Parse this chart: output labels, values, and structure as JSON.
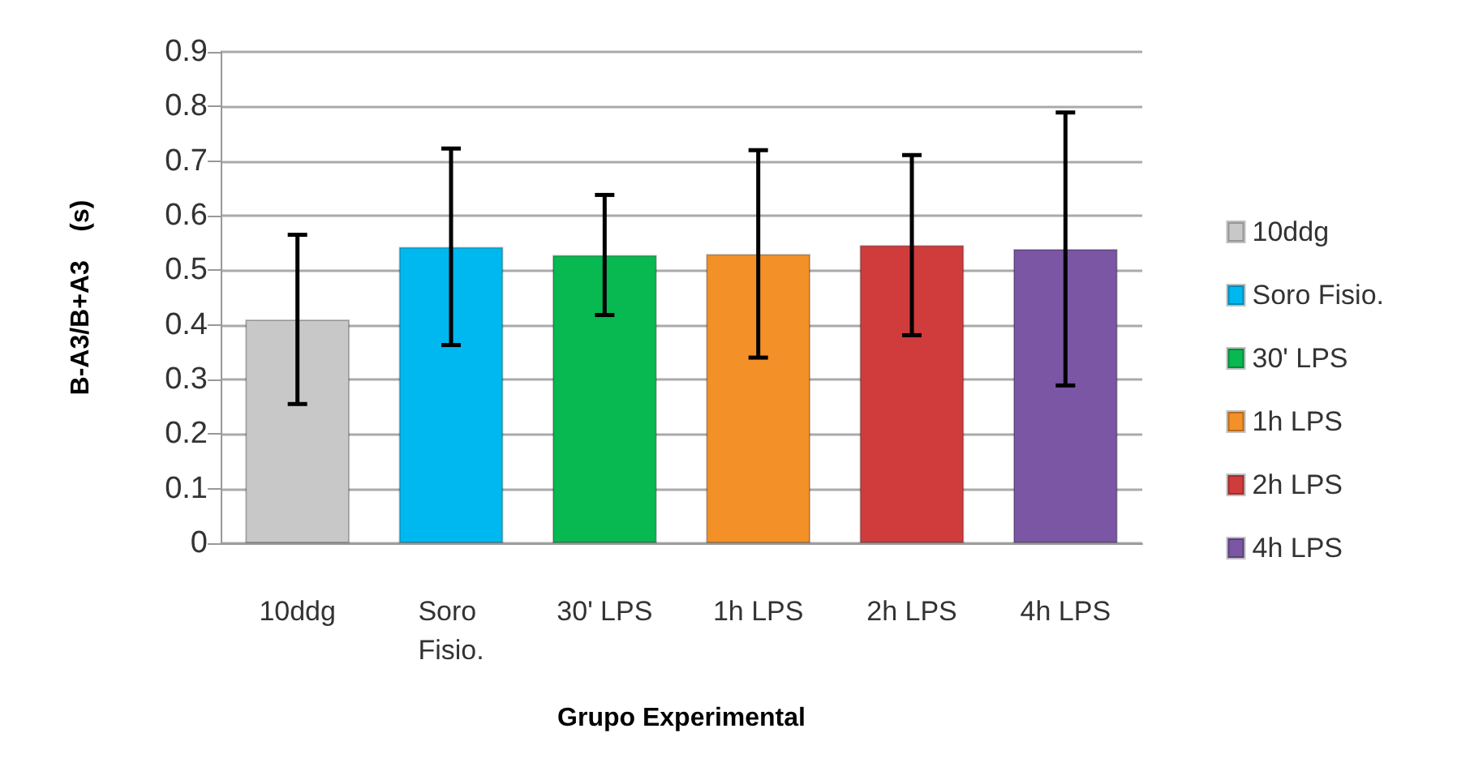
{
  "chart_data": {
    "type": "bar",
    "xlabel": "Grupo Experimental",
    "ylabel": "B-A3/B+A3    (s)",
    "categories": [
      "10ddg",
      "Soro Fisio.",
      "30' LPS",
      "1h LPS",
      "2h LPS",
      "4h LPS"
    ],
    "series": [
      {
        "name": "10ddg",
        "color": "#c8c8c8",
        "values": [
          0.41,
          null,
          null,
          null,
          null,
          null
        ],
        "errors": [
          0.155,
          null,
          null,
          null,
          null,
          null
        ]
      },
      {
        "name": "Soro Fisio.",
        "color": "#00b8f0",
        "values": [
          null,
          0.543,
          null,
          null,
          null,
          null
        ],
        "errors": [
          null,
          0.18,
          null,
          null,
          null,
          null
        ]
      },
      {
        "name": "30' LPS",
        "color": "#08b850",
        "values": [
          null,
          null,
          0.528,
          null,
          null,
          null
        ],
        "errors": [
          null,
          null,
          0.11,
          null,
          null,
          null
        ]
      },
      {
        "name": "1h LPS",
        "color": "#f39028",
        "values": [
          null,
          null,
          null,
          0.53,
          null,
          null
        ],
        "errors": [
          null,
          null,
          null,
          0.19,
          null,
          null
        ]
      },
      {
        "name": "2h LPS",
        "color": "#d03c3c",
        "values": [
          null,
          null,
          null,
          null,
          0.546,
          null
        ],
        "errors": [
          null,
          null,
          null,
          null,
          0.165,
          null
        ]
      },
      {
        "name": "4h LPS",
        "color": "#7a56a4",
        "values": [
          null,
          null,
          null,
          null,
          null,
          0.539
        ],
        "errors": [
          null,
          null,
          null,
          null,
          null,
          0.25
        ]
      }
    ],
    "ylim": [
      0,
      0.9
    ],
    "yticks": [
      0,
      0.1,
      0.2,
      0.3,
      0.4,
      0.5,
      0.6,
      0.7,
      0.8,
      0.9
    ],
    "grid": "y",
    "legend": "right"
  }
}
